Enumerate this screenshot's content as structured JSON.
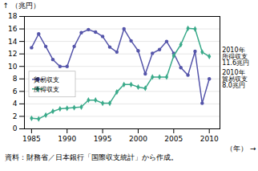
{
  "chart_data": {
    "type": "line",
    "ylabel": "（兆円）",
    "xlabel": "（年）",
    "caption": "資料：財務省／日本銀行「国際収支統計」から作成。",
    "x": [
      1985,
      1986,
      1987,
      1988,
      1989,
      1990,
      1991,
      1992,
      1993,
      1994,
      1995,
      1996,
      1997,
      1998,
      1999,
      2000,
      2001,
      2002,
      2003,
      2004,
      2005,
      2006,
      2007,
      2008,
      2009,
      2010
    ],
    "series": [
      {
        "name": "貿易収支",
        "color": "#5555aa",
        "marker": "circle",
        "values": [
          13.0,
          15.2,
          13.2,
          11.1,
          10.0,
          10.0,
          13.2,
          15.4,
          15.9,
          15.5,
          14.8,
          13.1,
          12.3,
          16.0,
          14.1,
          12.5,
          8.8,
          12.1,
          12.7,
          14.0,
          12.1,
          9.8,
          8.6,
          12.4,
          4.1,
          8.0
        ]
      },
      {
        "name": "所得収支",
        "color": "#3aaa8a",
        "marker": "diamond",
        "values": [
          1.7,
          1.6,
          2.2,
          2.8,
          3.2,
          3.3,
          3.4,
          3.5,
          4.6,
          4.6,
          4.1,
          4.1,
          5.9,
          7.1,
          7.1,
          6.7,
          6.5,
          8.3,
          8.3,
          8.3,
          11.7,
          13.5,
          16.1,
          16.0,
          12.3,
          11.6
        ]
      }
    ],
    "xlim": [
      1984.0,
      2011.5
    ],
    "xticks": [
      1985,
      1990,
      1995,
      2000,
      2005,
      2010
    ],
    "ylim": [
      0,
      18
    ],
    "yticks": [
      0,
      2,
      4,
      6,
      8,
      10,
      12,
      14,
      16,
      18
    ],
    "grid": true,
    "legend": "lower left",
    "annotations": [
      {
        "text": "2010年\n所得収支\n11.6兆円",
        "x": 2010,
        "y": 11.6
      },
      {
        "text": "2010年\n貿易収支\n8.0兆円",
        "x": 2010,
        "y": 8.0
      }
    ]
  }
}
